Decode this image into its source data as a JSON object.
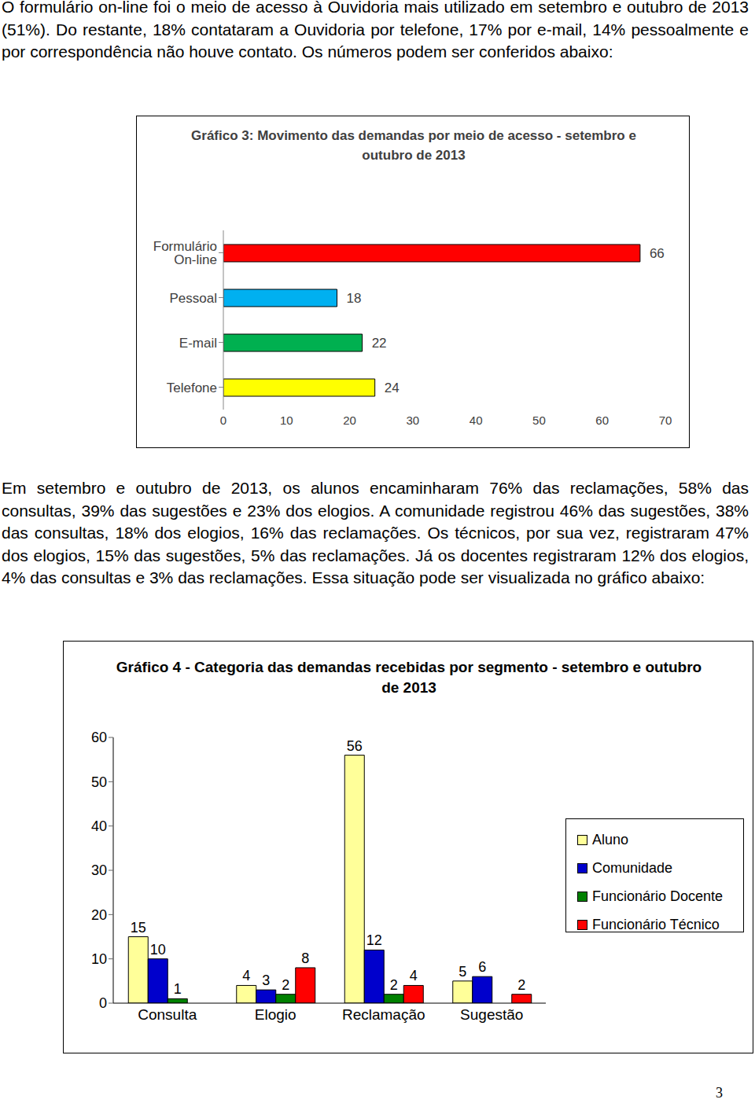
{
  "paragraphs": [
    "O formulário on-line foi o meio de acesso à Ouvidoria mais utilizado em setembro e outubro de 2013 (51%). Do restante, 18% contataram a Ouvidoria por telefone, 17% por e-mail, 14% pessoalmente e por correspondência não houve contato. Os números podem ser conferidos abaixo:",
    "Em setembro e outubro de 2013, os alunos encaminharam 76% das reclamações, 58% das consultas, 39% das sugestões e 23% dos elogios. A comunidade registrou 46% das sugestões, 38% das consultas, 18% dos elogios, 16% das reclamações. Os técnicos, por sua vez, registraram 47% dos elogios, 15% das sugestões, 5% das reclamações. Já os docentes registraram 12% dos elogios, 4% das consultas e 3% das reclamações. Essa situação pode ser visualizada no gráfico abaixo:"
  ],
  "chart_data": [
    {
      "type": "bar",
      "title": "Gráfico 3: Movimento das demandas por meio de acesso - setembro  e outubro de 2013",
      "orientation": "horizontal",
      "categories": [
        "Formulário On-line",
        "Pessoal",
        "E-mail",
        "Telefone"
      ],
      "values": [
        66,
        18,
        22,
        24
      ],
      "colors": [
        "#ff0000",
        "#00b0f0",
        "#00b050",
        "#ffff00"
      ],
      "xlim": [
        0,
        70
      ],
      "xticks": [
        0,
        10,
        20,
        30,
        40,
        50,
        60,
        70
      ],
      "data_labels": true,
      "grid": false
    },
    {
      "type": "bar",
      "title": "Gráfico 4 - Categoria das demandas recebidas por segmento - setembro e outubro de 2013",
      "categories": [
        "Consulta",
        "Elogio",
        "Reclamação",
        "Sugestão"
      ],
      "series": [
        {
          "name": "Aluno",
          "color": "#ffff99",
          "values": [
            15,
            4,
            56,
            5
          ]
        },
        {
          "name": "Comunidade",
          "color": "#0000cc",
          "values": [
            10,
            3,
            12,
            6
          ]
        },
        {
          "name": "Funcionário Docente",
          "color": "#008000",
          "values": [
            1,
            2,
            2,
            null
          ]
        },
        {
          "name": "Funcionário Técnico",
          "color": "#ff0000",
          "values": [
            null,
            8,
            4,
            2
          ]
        }
      ],
      "ylim": [
        0,
        60
      ],
      "yticks": [
        0,
        10,
        20,
        30,
        40,
        50,
        60
      ],
      "data_labels": true,
      "grid": false,
      "legend": "right"
    }
  ],
  "page_number": 3
}
